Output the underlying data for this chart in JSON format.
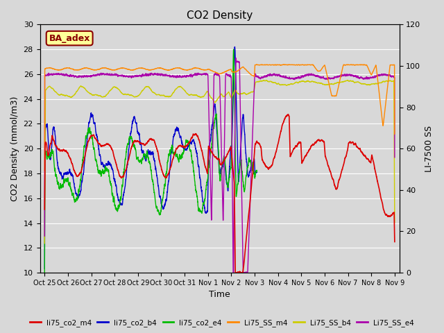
{
  "title": "CO2 Density",
  "xlabel": "Time",
  "ylabel_left": "CO2 Density (mmol/m3)",
  "ylabel_right": "LI-7500 SS",
  "ylim_left": [
    10,
    30
  ],
  "ylim_right": [
    0,
    120
  ],
  "background_color": "#d8d8d8",
  "plot_bg_color": "#d8d8d8",
  "annotation_text": "BA_adex",
  "annotation_color": "#8b0000",
  "annotation_bg": "#ffff99",
  "annotation_border": "#8b0000",
  "legend_entries": [
    "li75_co2_m4",
    "li75_co2_b4",
    "li75_co2_e4",
    "Li75_SS_m4",
    "Li75_SS_b4",
    "Li75_SS_e4"
  ],
  "legend_colors": [
    "#dd0000",
    "#0000cc",
    "#00bb00",
    "#ff8800",
    "#cccc00",
    "#aa00aa"
  ],
  "line_colors": {
    "li75_co2_m4": "#dd0000",
    "li75_co2_b4": "#0000cc",
    "li75_co2_e4": "#00bb00",
    "Li75_SS_m4": "#ff8800",
    "Li75_SS_b4": "#cccc00",
    "Li75_SS_e4": "#aa00aa"
  },
  "xtick_labels": [
    "Oct 25",
    "Oct 26",
    "Oct 27",
    "Oct 28",
    "Oct 29",
    "Oct 30",
    "Oct 31",
    "Nov 1",
    "Nov 2",
    "Nov 3",
    "Nov 4",
    "Nov 5",
    "Nov 6",
    "Nov 7",
    "Nov 8",
    "Nov 9"
  ],
  "xtick_positions": [
    0,
    1,
    2,
    3,
    4,
    5,
    6,
    7,
    8,
    9,
    10,
    11,
    12,
    13,
    14,
    15
  ],
  "grid_color": "#bbbbbb",
  "yticks_left": [
    10,
    12,
    14,
    16,
    18,
    20,
    22,
    24,
    26,
    28,
    30
  ],
  "yticks_right": [
    0,
    20,
    40,
    60,
    80,
    100,
    120
  ]
}
